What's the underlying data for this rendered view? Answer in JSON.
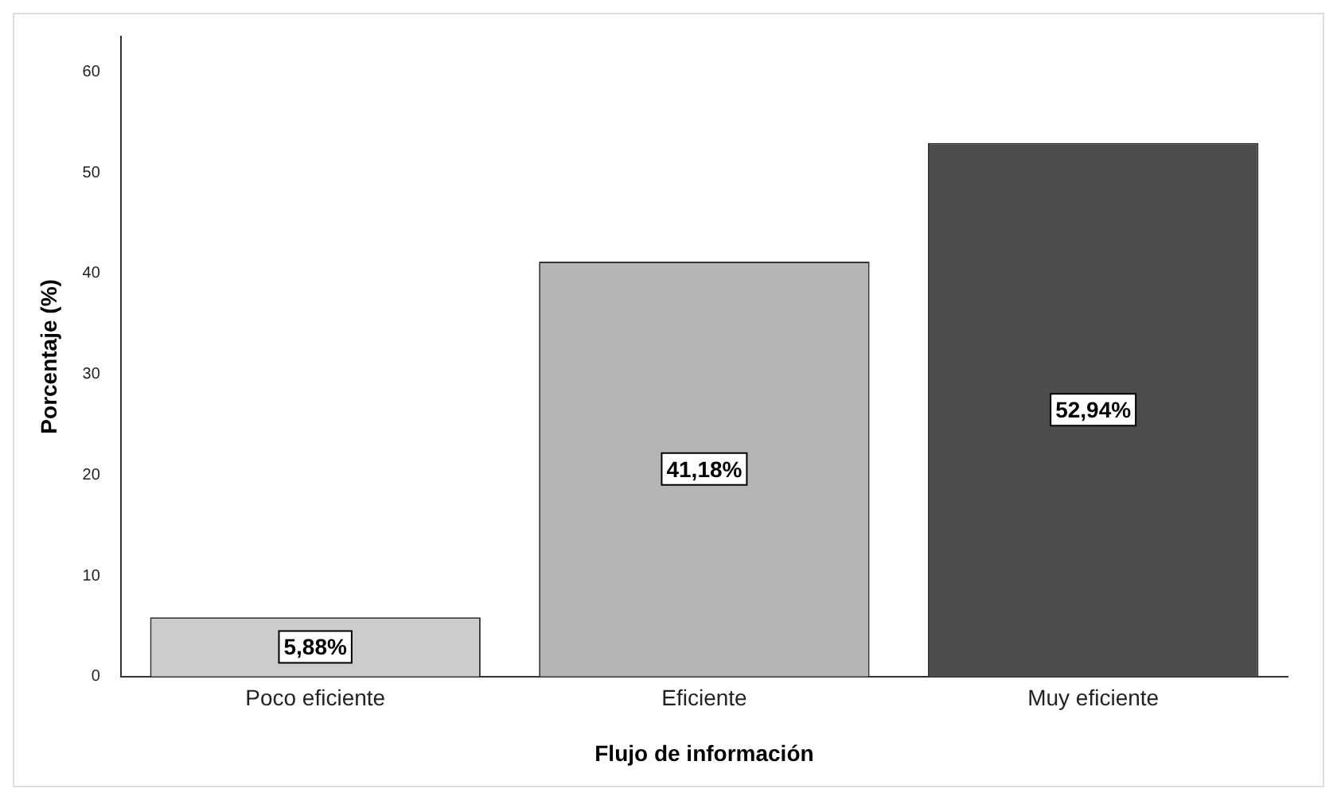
{
  "chart_data": {
    "type": "bar",
    "xlabel": "Flujo de información",
    "ylabel": "Porcentaje (%)",
    "categories": [
      "Poco eficiente",
      "Eficiente",
      "Muy eficiente"
    ],
    "values": [
      5.88,
      41.18,
      52.94
    ],
    "colors": [
      "#cccccc",
      "#b5b5b5",
      "#4c4c4c"
    ],
    "value_labels": [
      "5,88%",
      "41,18%",
      "52,94%"
    ],
    "ylim": [
      0,
      63.5
    ],
    "yticks": [
      0,
      10,
      20,
      30,
      40,
      50,
      60
    ],
    "grid": false,
    "legend": false
  }
}
